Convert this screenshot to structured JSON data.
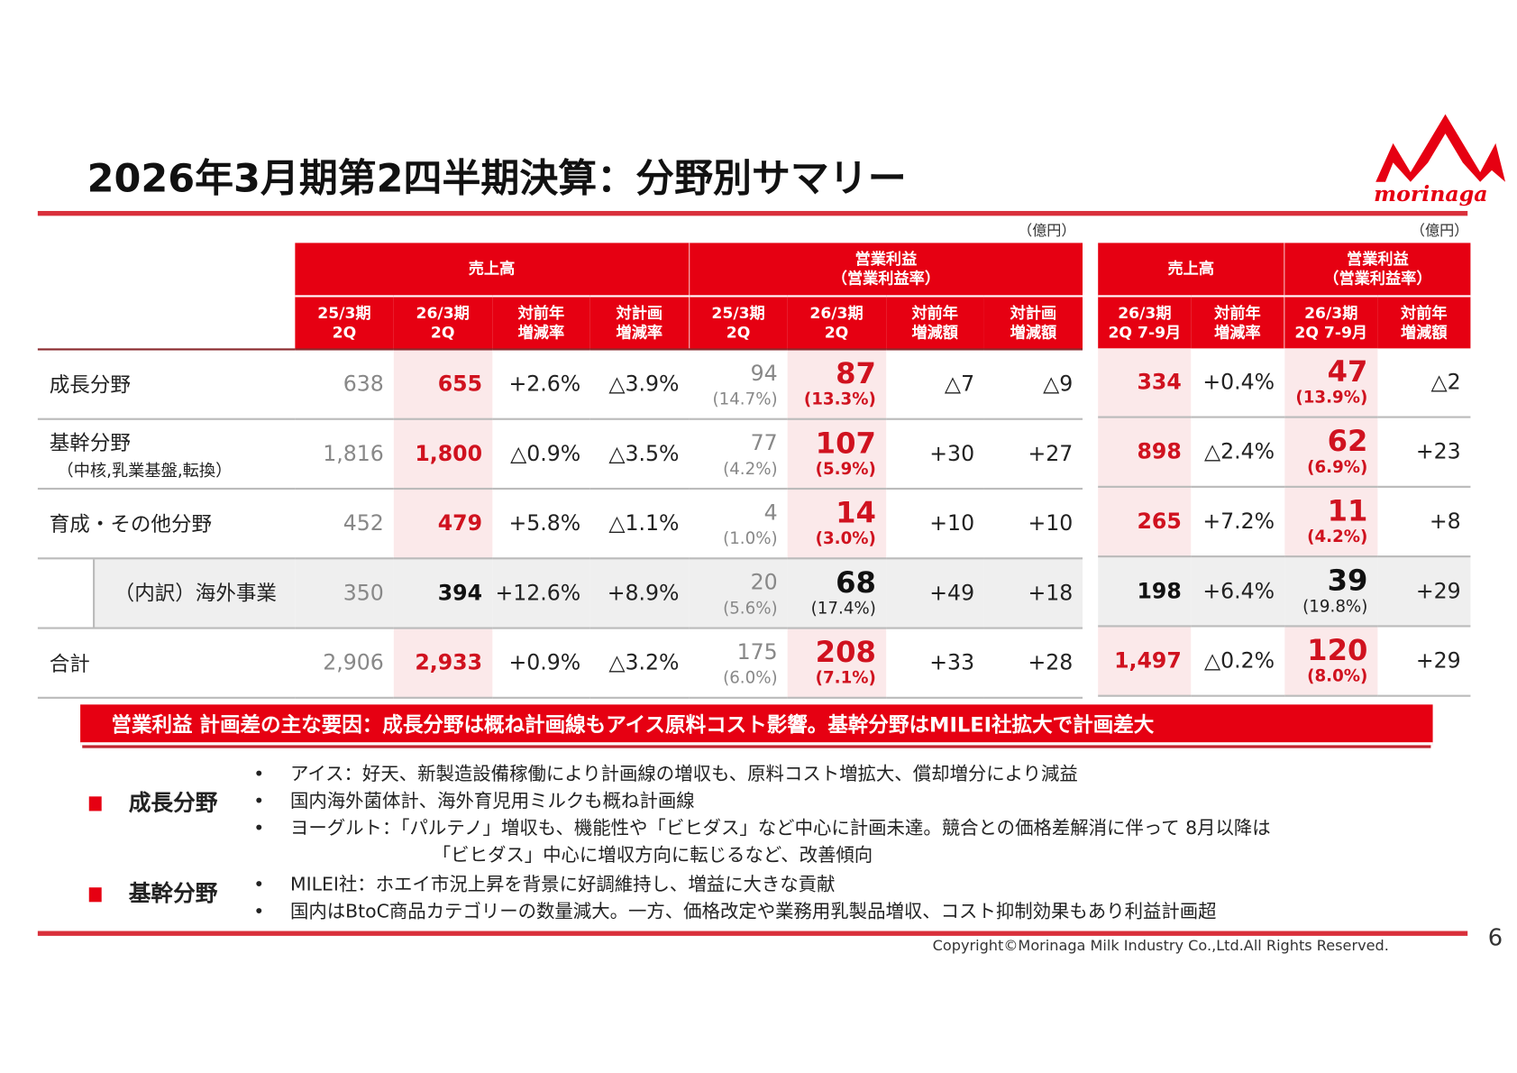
{
  "title": "2026年3月期第2四半期決算：分野別サマリー",
  "logo_text": "morinaga",
  "unit_left": "（億円）",
  "unit_right": "（億円）",
  "brand_color": "#e60012",
  "left_table": {
    "group_headers": {
      "sales": "売上高",
      "op_profit": "営業利益",
      "op_profit_sub": "（営業利益率）"
    },
    "columns": [
      [
        "25/3期",
        "2Q"
      ],
      [
        "26/3期",
        "2Q"
      ],
      [
        "対前年",
        "増減率"
      ],
      [
        "対計画",
        "増減率"
      ],
      [
        "25/3期",
        "2Q"
      ],
      [
        "26/3期",
        "2Q"
      ],
      [
        "対前年",
        "増減額"
      ],
      [
        "対計画",
        "増減額"
      ]
    ]
  },
  "right_table": {
    "group_headers": {
      "sales": "売上高",
      "op_profit": "営業利益",
      "op_profit_sub": "（営業利益率）"
    },
    "columns": [
      [
        "26/3期",
        "2Q 7-9月"
      ],
      [
        "対前年",
        "増減率"
      ],
      [
        "26/3期",
        "2Q 7-9月"
      ],
      [
        "対前年",
        "増減額"
      ]
    ]
  },
  "rows": [
    {
      "label": "成長分野",
      "sub": "",
      "sales_prev": "638",
      "sales_cur": "655",
      "sales_yoy": "+2.6%",
      "sales_plan": "△3.9%",
      "op_prev": "94",
      "op_prev_rate": "(14.7%)",
      "op_cur": "87",
      "op_cur_rate": "(13.3%)",
      "op_yoy": "△7",
      "op_plan": "△9",
      "q_sales": "334",
      "q_sales_yoy": "+0.4%",
      "q_op": "47",
      "q_op_rate": "(13.9%)",
      "q_op_yoy": "△2"
    },
    {
      "label": "基幹分野",
      "sub": "（中核,乳業基盤,転換）",
      "sales_prev": "1,816",
      "sales_cur": "1,800",
      "sales_yoy": "△0.9%",
      "sales_plan": "△3.5%",
      "op_prev": "77",
      "op_prev_rate": "(4.2%)",
      "op_cur": "107",
      "op_cur_rate": "(5.9%)",
      "op_yoy": "+30",
      "op_plan": "+27",
      "q_sales": "898",
      "q_sales_yoy": "△2.4%",
      "q_op": "62",
      "q_op_rate": "(6.9%)",
      "q_op_yoy": "+23"
    },
    {
      "label": "育成・その他分野",
      "sub": "",
      "sales_prev": "452",
      "sales_cur": "479",
      "sales_yoy": "+5.8%",
      "sales_plan": "△1.1%",
      "op_prev": "4",
      "op_prev_rate": "(1.0%)",
      "op_cur": "14",
      "op_cur_rate": "(3.0%)",
      "op_yoy": "+10",
      "op_plan": "+10",
      "q_sales": "265",
      "q_sales_yoy": "+7.2%",
      "q_op": "11",
      "q_op_rate": "(4.2%)",
      "q_op_yoy": "+8"
    },
    {
      "label": "（内訳）海外事業",
      "sub": "",
      "sales_prev": "350",
      "sales_cur": "394",
      "sales_yoy": "+12.6%",
      "sales_plan": "+8.9%",
      "op_prev": "20",
      "op_prev_rate": "(5.6%)",
      "op_cur": "68",
      "op_cur_rate": "(17.4%)",
      "op_yoy": "+49",
      "op_plan": "+18",
      "q_sales": "198",
      "q_sales_yoy": "+6.4%",
      "q_op": "39",
      "q_op_rate": "(19.8%)",
      "q_op_yoy": "+29"
    },
    {
      "label": "合計",
      "sub": "",
      "sales_prev": "2,906",
      "sales_cur": "2,933",
      "sales_yoy": "+0.9%",
      "sales_plan": "△3.2%",
      "op_prev": "175",
      "op_prev_rate": "(6.0%)",
      "op_cur": "208",
      "op_cur_rate": "(7.1%)",
      "op_yoy": "+33",
      "op_plan": "+28",
      "q_sales": "1,497",
      "q_sales_yoy": "△0.2%",
      "q_op": "120",
      "q_op_rate": "(8.0%)",
      "q_op_yoy": "+29"
    }
  ],
  "banner": "営業利益 計画差の主な要因：成長分野は概ね計画線もアイス原料コスト影響。基幹分野はMILEI社拡大で計画差大",
  "sections": [
    {
      "label": "成長分野",
      "bullets": [
        "アイス：好天、新製造設備稼働により計画線の増収も、原料コスト増拡大、償却増分により減益",
        "国内海外菌体計、海外育児用ミルクも概ね計画線",
        "ヨーグルト：「パルテノ」増収も、機能性や「ビヒダス」など中心に計画未達。競合との価格差解消に伴って 8月以降は",
        "「ビヒダス」中心に増収方向に転じるなど、改善傾向"
      ]
    },
    {
      "label": "基幹分野",
      "bullets": [
        "MILEI社：ホエイ市況上昇を背景に好調維持し、増益に大きな貢献",
        "国内はBtoC商品カテゴリーの数量減大。一方、価格改定や業務用乳製品増収、コスト抑制効果もあり利益計画超"
      ]
    }
  ],
  "copyright": "Copyright©Morinaga Milk Industry Co.,Ltd.All Rights Reserved.",
  "page_number": "6"
}
